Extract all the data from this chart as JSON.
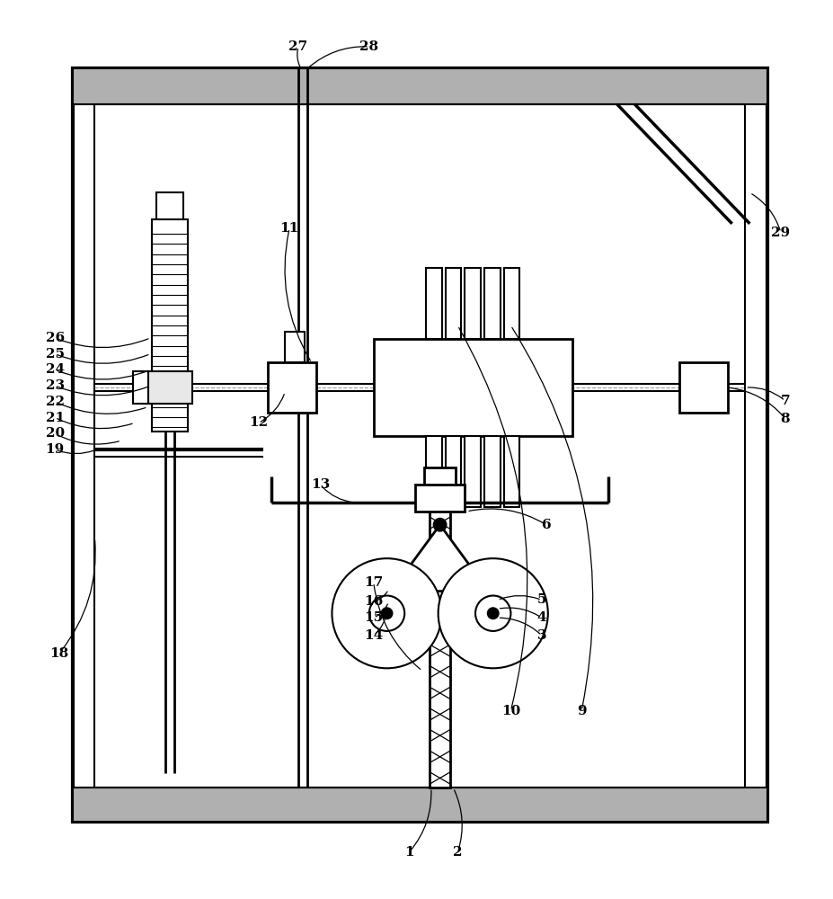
{
  "bg_color": "#ffffff",
  "lc": "#000000",
  "lw": 1.5,
  "fig_width": 9.28,
  "fig_height": 10.0
}
